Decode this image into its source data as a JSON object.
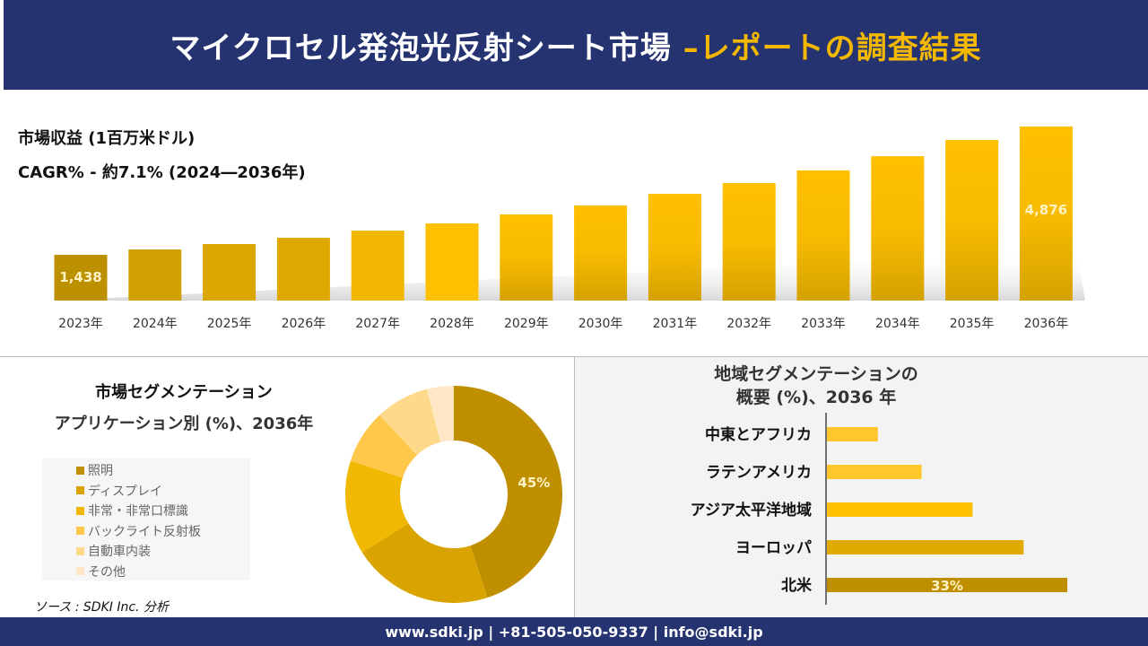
{
  "header": {
    "title_main": "マイクロセル発泡光反射シート市場",
    "title_accent": "–レポートの調査結果"
  },
  "revenue": {
    "label": "市場収益 (1百万米ドル)",
    "cagr": "CAGR% - 約7.1% (2024―2036年)"
  },
  "colors": {
    "navy": "#253370",
    "accent": "#f5b800"
  },
  "chart_data": [
    {
      "type": "bar",
      "categories": [
        "2023年",
        "2024年",
        "2025年",
        "2026年",
        "2027年",
        "2028年",
        "2029年",
        "2030年",
        "2031年",
        "2032年",
        "2033年",
        "2034年",
        "2035年",
        "2036年"
      ],
      "values": [
        1438,
        1580,
        1725,
        1895,
        2085,
        2280,
        2520,
        2760,
        3070,
        3360,
        3700,
        4080,
        4515,
        4876
      ],
      "data_labels": {
        "0": "1,438",
        "13": "4,876"
      },
      "ylabel": "",
      "colors": [
        "#bd9000",
        "#cfa000",
        "#dba600",
        "#dfa800",
        "#f0b600",
        "#ffc000",
        "#ffc000",
        "#ffc000",
        "#ffc000",
        "#ffc000",
        "#ffc000",
        "#ffc000",
        "#ffc000",
        "#ffc000"
      ]
    },
    {
      "type": "pie",
      "title": "市場セグメンテーション",
      "subtitle": "アプリケーション別 (%)、2036年",
      "labels": [
        "照明",
        "ディスプレイ",
        "非常・非常口標識",
        "バックライト反射板",
        "自動車内装",
        "その他"
      ],
      "values": [
        45,
        21,
        14,
        8,
        8,
        4
      ],
      "data_labels": {
        "0": "45%"
      },
      "colors": [
        "#bf8f00",
        "#d9a400",
        "#f0b800",
        "#ffc84a",
        "#ffd98a",
        "#ffe6c4"
      ],
      "legend": "left"
    },
    {
      "type": "bar",
      "orientation": "horizontal",
      "title": "地域セグメンテーションの",
      "subtitle": "概要 (%)、2036 年",
      "categories": [
        "中東とアフリカ",
        "ラテンアメリカ",
        "アジア太平洋地域",
        "ヨーロッパ",
        "北米"
      ],
      "values": [
        7,
        13,
        20,
        27,
        33
      ],
      "data_labels": {
        "4": "33%"
      },
      "colors": [
        "#ffc72c",
        "#ffc72c",
        "#ffc000",
        "#e0aa00",
        "#bf8f00"
      ]
    }
  ],
  "source": "ソース : SDKI Inc. 分析",
  "footer": "www.sdki.jp | +81-505-050-9337 | info@sdki.jp"
}
